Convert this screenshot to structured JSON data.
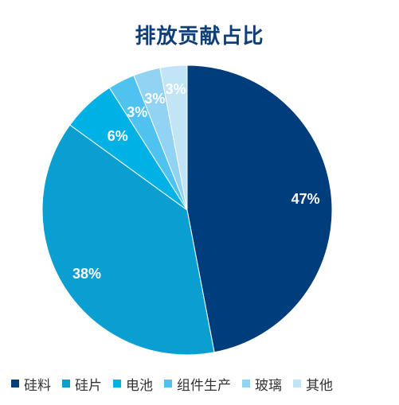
{
  "chart_data": {
    "type": "pie",
    "title": "排放贡献占比",
    "categories": [
      "硅料",
      "硅片",
      "电池",
      "组件生产",
      "玻璃",
      "其他"
    ],
    "values": [
      47,
      38,
      6,
      3,
      3,
      3
    ],
    "labels": [
      "47%",
      "38%",
      "6%",
      "3%",
      "3%",
      "3%"
    ],
    "colors": [
      "#003d7c",
      "#0a9fd0",
      "#00b1e6",
      "#4fc2ef",
      "#92d3f3",
      "#c1e4f7"
    ],
    "legend_position": "bottom"
  }
}
